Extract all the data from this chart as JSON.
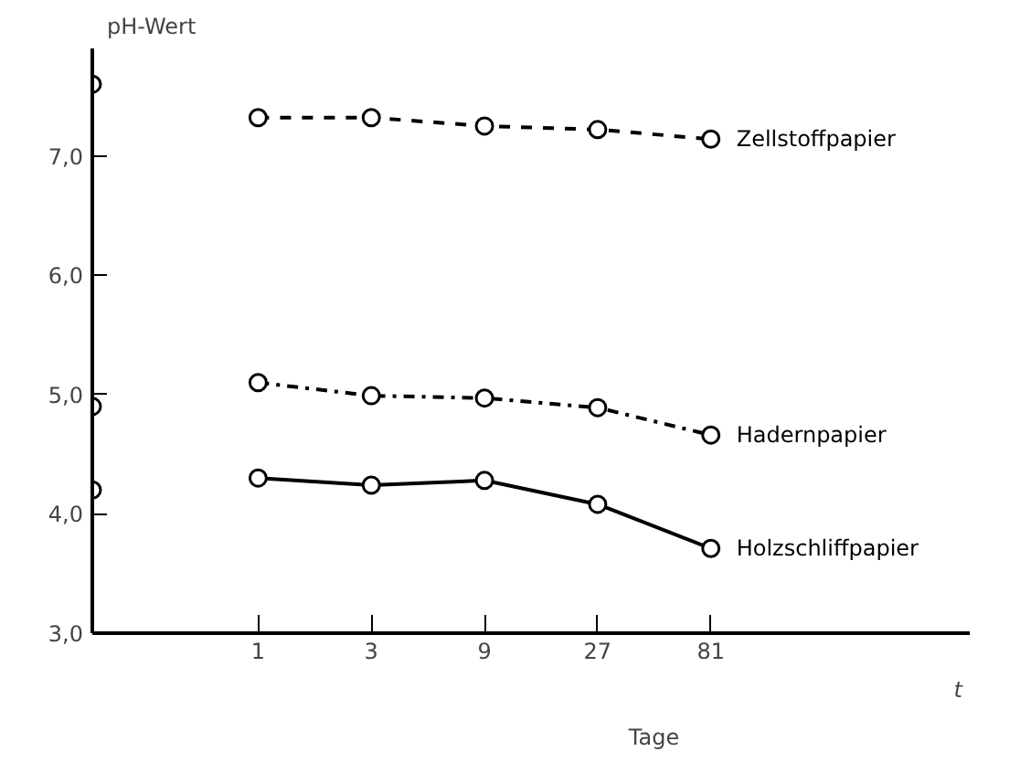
{
  "chart_data": {
    "type": "line",
    "ylabel": "pH-Wert",
    "xlabel": "t",
    "annotations": [
      "Tage"
    ],
    "log": "x",
    "xlim": [
      0.2,
      1000
    ],
    "xticks": [
      1,
      3,
      9,
      27,
      81
    ],
    "ylim": [
      3.0,
      7.9
    ],
    "yticks": [
      {
        "value": 3,
        "label": "3,0"
      },
      {
        "value": 4,
        "label": "4,0"
      },
      {
        "value": 5,
        "label": "5,0"
      },
      {
        "value": 6,
        "label": "6,0"
      },
      {
        "value": 7,
        "label": "7,0"
      }
    ],
    "grid": false,
    "marker": "circle",
    "series": [
      {
        "name": "Zellstoffpapier",
        "color": "#000000",
        "line_style": "dashed",
        "x": [
          1,
          3,
          9,
          27,
          81
        ],
        "values": [
          7.32,
          7.32,
          7.25,
          7.22,
          7.14
        ]
      },
      {
        "name": "Hadernpapier",
        "color": "#000000",
        "line_style": "dashdot",
        "x": [
          1,
          3,
          9,
          27,
          81
        ],
        "values": [
          5.1,
          4.99,
          4.97,
          4.89,
          4.66
        ]
      },
      {
        "name": "Holzschliffpapier",
        "color": "#000000",
        "line_style": "solid",
        "x": [
          1,
          3,
          9,
          27,
          81
        ],
        "values": [
          4.3,
          4.24,
          4.28,
          4.08,
          3.71
        ]
      },
      {
        "type": "scatter",
        "color": "#000000",
        "x": [
          0.2,
          0.2,
          0.2
        ],
        "values": [
          7.6,
          4.9,
          4.2
        ]
      }
    ]
  }
}
